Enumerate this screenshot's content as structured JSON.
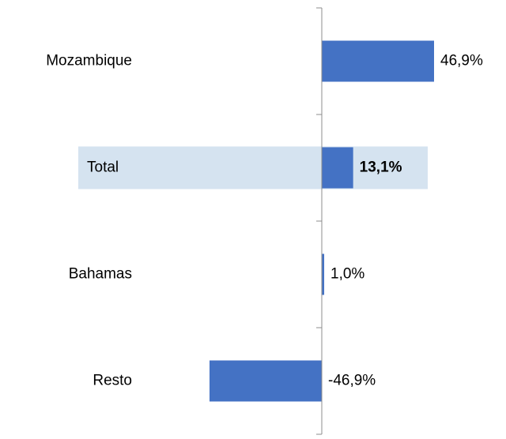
{
  "chart_data": {
    "type": "hbar",
    "categories": [
      "Mozambique",
      "Total",
      "Bahamas",
      "Resto"
    ],
    "values": [
      46.9,
      13.1,
      1.0,
      -46.9
    ],
    "value_labels": [
      "46,9%",
      "13,1%",
      "1,0%",
      "-46,9%"
    ],
    "color": "#4472c4",
    "highlight_index": 1,
    "highlight_color": "#d5e3f0"
  }
}
